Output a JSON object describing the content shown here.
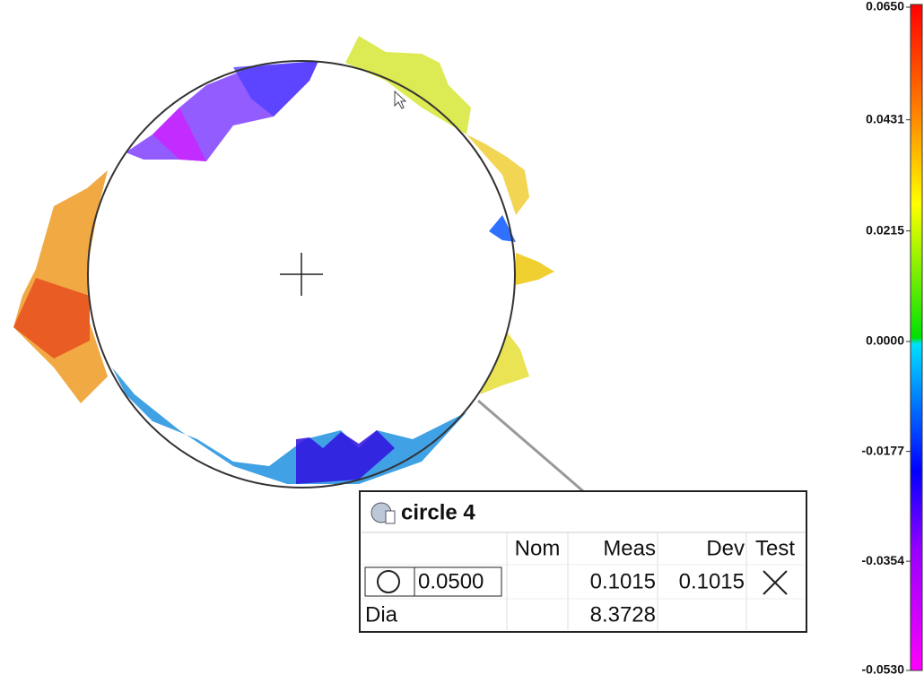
{
  "color_scale": {
    "ticks": [
      {
        "value": 0.065,
        "label": "0.0650"
      },
      {
        "value": 0.0431,
        "label": "0.0431"
      },
      {
        "value": 0.0215,
        "label": "0.0215"
      },
      {
        "value": 0,
        "label": "0.0000"
      },
      {
        "value": -0.0177,
        "label": "-0.0177"
      },
      {
        "value": -0.0354,
        "label": "-0.0354"
      },
      {
        "value": -0.053,
        "label": "-0.0530"
      }
    ]
  },
  "feature": {
    "name": "circle 4",
    "columns": [
      "Nom",
      "Meas",
      "Dev",
      "Test"
    ],
    "tolerance": "0.0500",
    "meas": "0.1015",
    "dev": "0.1015",
    "label": "Dia",
    "size": "8.3728"
  }
}
